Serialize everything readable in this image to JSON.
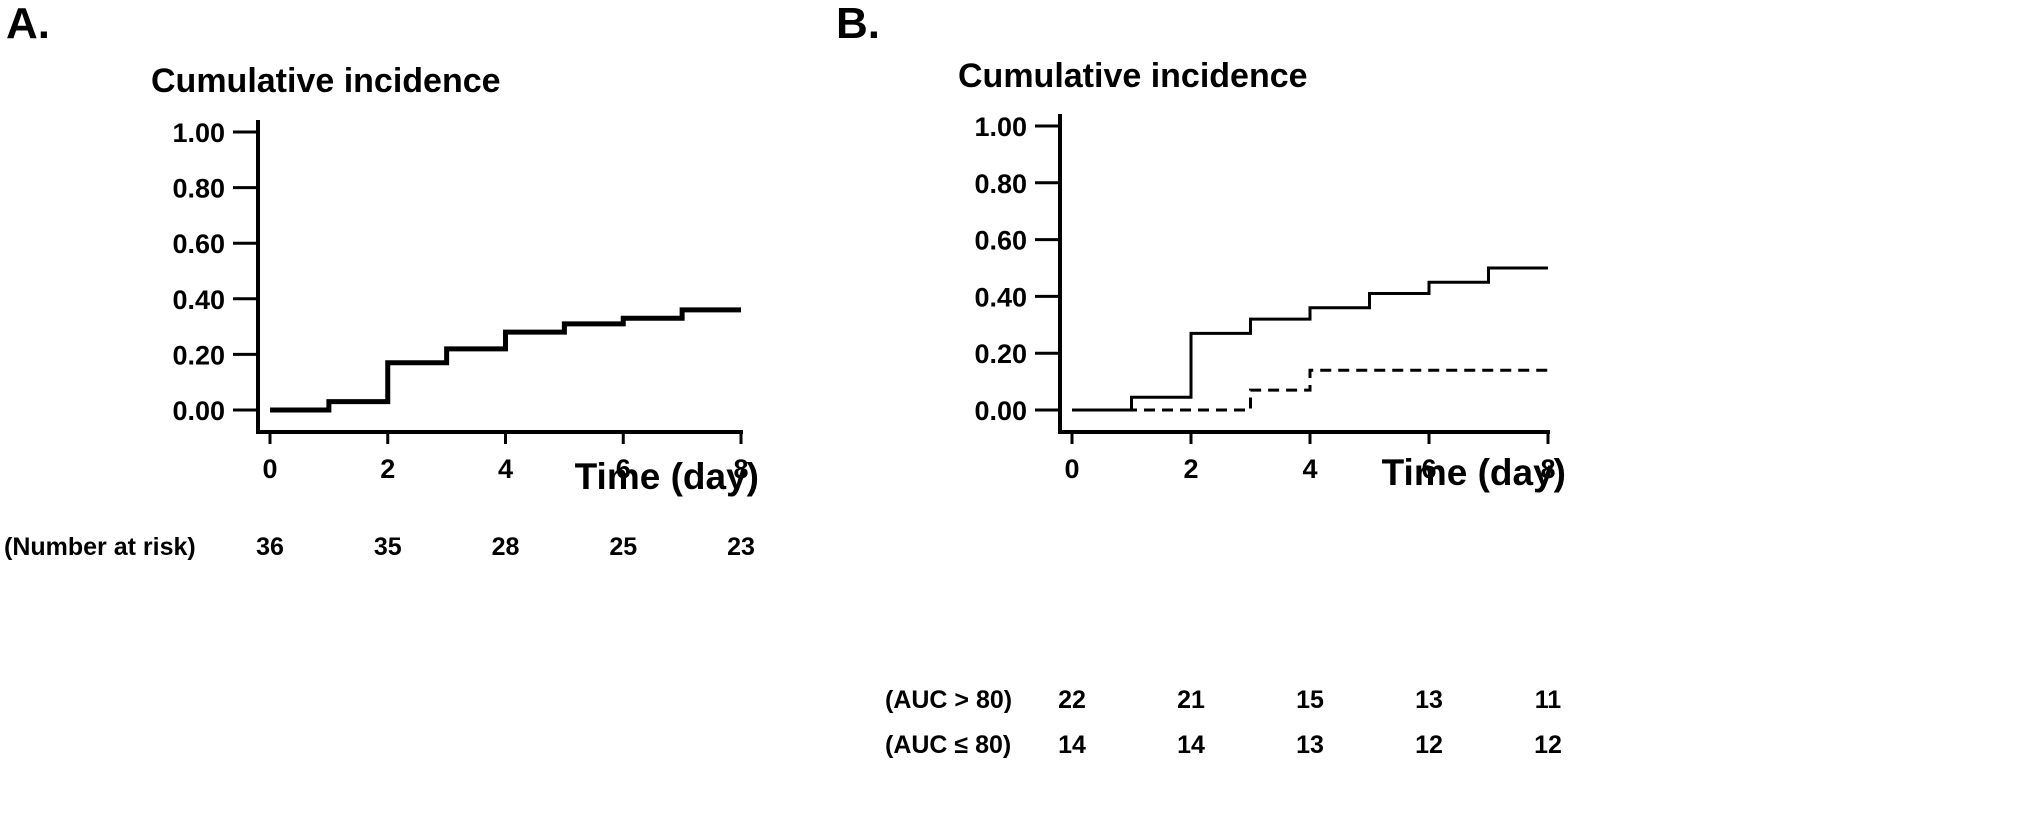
{
  "chart_data": [
    {
      "panel": "A.",
      "type": "line",
      "title": "Cumulative incidence",
      "xlabel": "Time (day)",
      "ylabel": "",
      "xlim": [
        0,
        8
      ],
      "ylim": [
        0,
        1
      ],
      "xticks": [
        "0",
        "2",
        "4",
        "6",
        "8"
      ],
      "yticks": [
        "0.00",
        "0.20",
        "0.40",
        "0.60",
        "0.80",
        "1.00"
      ],
      "grid": false,
      "series": [
        {
          "style": "solid-thick",
          "x": [
            0,
            1,
            2,
            3,
            4,
            5,
            6,
            7,
            8
          ],
          "y": [
            0.0,
            0.03,
            0.17,
            0.22,
            0.28,
            0.31,
            0.33,
            0.36,
            0.36
          ]
        }
      ],
      "risk_table": {
        "times": [
          0,
          2,
          4,
          6,
          8
        ],
        "rows": [
          {
            "label": "(Number at risk)",
            "values": [
              "36",
              "35",
              "28",
              "25",
              "23"
            ]
          }
        ]
      }
    },
    {
      "panel": "B.",
      "type": "line",
      "title": "Cumulative incidence",
      "xlabel": "Time (day)",
      "ylabel": "",
      "xlim": [
        0,
        8
      ],
      "ylim": [
        0,
        1
      ],
      "xticks": [
        "0",
        "2",
        "4",
        "6",
        "8"
      ],
      "yticks": [
        "0.00",
        "0.20",
        "0.40",
        "0.60",
        "0.80",
        "1.00"
      ],
      "grid": false,
      "series": [
        {
          "style": "solid",
          "x": [
            0,
            1,
            2,
            3,
            4,
            5,
            6,
            7,
            8
          ],
          "y": [
            0.0,
            0.045,
            0.27,
            0.32,
            0.36,
            0.41,
            0.45,
            0.5,
            0.5
          ]
        },
        {
          "style": "dashed",
          "x": [
            0,
            3,
            4,
            8
          ],
          "y": [
            0.0,
            0.07,
            0.14,
            0.14
          ]
        }
      ],
      "risk_table": {
        "times": [
          0,
          2,
          4,
          6,
          8
        ],
        "rows": [
          {
            "label": "(AUC > 80)",
            "values": [
              "22",
              "21",
              "15",
              "13",
              "11"
            ]
          },
          {
            "label": "(AUC ≤ 80)",
            "values": [
              "14",
              "14",
              "13",
              "12",
              "12"
            ]
          }
        ]
      }
    }
  ]
}
